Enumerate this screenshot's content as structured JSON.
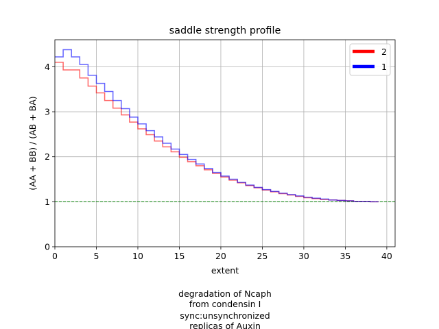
{
  "chart_data": {
    "type": "line",
    "drawstyle": "steps-post",
    "title": "saddle strength profile",
    "xlabel": "extent",
    "ylabel": "(AA + BB) / (AB + BA)",
    "xlim": [
      0,
      41
    ],
    "ylim": [
      0,
      4.6
    ],
    "xticks": [
      0,
      5,
      10,
      15,
      20,
      25,
      30,
      35,
      40
    ],
    "yticks": [
      0,
      1,
      2,
      3,
      4
    ],
    "grid": true,
    "legend_position": "top-right",
    "reference_line": {
      "y": 1,
      "color": "#008000",
      "style": "dashed"
    },
    "x": [
      0,
      1,
      2,
      3,
      4,
      5,
      6,
      7,
      8,
      9,
      10,
      11,
      12,
      13,
      14,
      15,
      16,
      17,
      18,
      19,
      20,
      21,
      22,
      23,
      24,
      25,
      26,
      27,
      28,
      29,
      30,
      31,
      32,
      33,
      34,
      35,
      36,
      37,
      38,
      39
    ],
    "series": [
      {
        "name": "2",
        "color": "#ff0000",
        "values": [
          4.1,
          3.93,
          3.93,
          3.75,
          3.57,
          3.42,
          3.25,
          3.08,
          2.93,
          2.77,
          2.62,
          2.49,
          2.35,
          2.22,
          2.11,
          1.99,
          1.89,
          1.8,
          1.71,
          1.63,
          1.55,
          1.48,
          1.42,
          1.36,
          1.31,
          1.26,
          1.22,
          1.18,
          1.15,
          1.12,
          1.09,
          1.07,
          1.05,
          1.04,
          1.03,
          1.02,
          1.01,
          1.01,
          1.0,
          1.0
        ]
      },
      {
        "name": "1",
        "color": "#0000ff",
        "values": [
          4.22,
          4.38,
          4.22,
          4.05,
          3.81,
          3.63,
          3.45,
          3.25,
          3.07,
          2.88,
          2.73,
          2.58,
          2.44,
          2.3,
          2.17,
          2.05,
          1.94,
          1.84,
          1.74,
          1.65,
          1.57,
          1.5,
          1.43,
          1.37,
          1.32,
          1.27,
          1.23,
          1.19,
          1.16,
          1.13,
          1.1,
          1.08,
          1.06,
          1.04,
          1.03,
          1.02,
          1.01,
          1.01,
          1.0,
          1.0
        ]
      }
    ],
    "caption": [
      "degradation of Ncaph",
      "from condensin I",
      "sync:unsynchronized",
      "replicas of Auxin"
    ]
  }
}
